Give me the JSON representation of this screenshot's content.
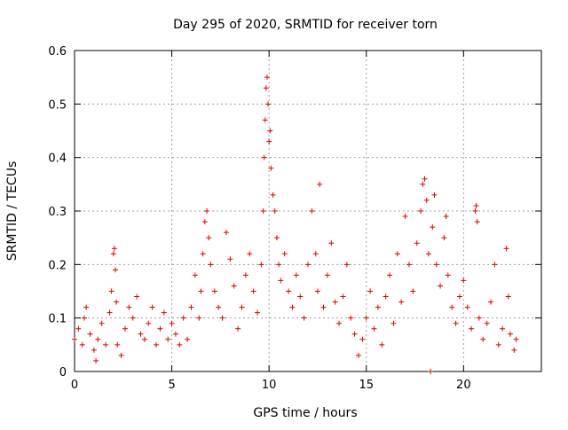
{
  "chart_data": {
    "type": "scatter",
    "title": "Day 295 of 2020, SRMTID for receiver torn",
    "xlabel": "GPS time / hours",
    "ylabel": "SRMTID / TECUs",
    "xlim": [
      0,
      24
    ],
    "ylim": [
      0,
      0.6
    ],
    "xticks": [
      0,
      5,
      10,
      15,
      20
    ],
    "yticks": [
      0,
      0.1,
      0.2,
      0.3,
      0.4,
      0.5,
      0.6
    ],
    "xtick_labels": [
      "0",
      "5",
      "10",
      "15",
      "20"
    ],
    "ytick_labels": [
      "0",
      "0.1",
      "0.2",
      "0.3",
      "0.4",
      "0.5",
      "0.6"
    ],
    "grid": true,
    "marker": "plus",
    "series": [
      {
        "name": "SRMTID",
        "color": "#e00000",
        "points": [
          [
            0.0,
            0.06
          ],
          [
            0.2,
            0.08
          ],
          [
            0.4,
            0.05
          ],
          [
            0.5,
            0.1
          ],
          [
            0.6,
            0.12
          ],
          [
            0.8,
            0.07
          ],
          [
            1.0,
            0.04
          ],
          [
            1.1,
            0.02
          ],
          [
            1.2,
            0.06
          ],
          [
            1.4,
            0.09
          ],
          [
            1.6,
            0.05
          ],
          [
            1.8,
            0.11
          ],
          [
            1.9,
            0.15
          ],
          [
            2.0,
            0.22
          ],
          [
            2.05,
            0.23
          ],
          [
            2.1,
            0.19
          ],
          [
            2.15,
            0.13
          ],
          [
            2.2,
            0.05
          ],
          [
            2.4,
            0.03
          ],
          [
            2.6,
            0.08
          ],
          [
            2.8,
            0.12
          ],
          [
            3.0,
            0.1
          ],
          [
            3.2,
            0.14
          ],
          [
            3.4,
            0.07
          ],
          [
            3.6,
            0.06
          ],
          [
            3.8,
            0.09
          ],
          [
            4.0,
            0.12
          ],
          [
            4.2,
            0.05
          ],
          [
            4.4,
            0.08
          ],
          [
            4.6,
            0.11
          ],
          [
            4.8,
            0.06
          ],
          [
            5.0,
            0.09
          ],
          [
            5.2,
            0.07
          ],
          [
            5.4,
            0.05
          ],
          [
            5.6,
            0.1
          ],
          [
            5.8,
            0.06
          ],
          [
            6.0,
            0.12
          ],
          [
            6.2,
            0.18
          ],
          [
            6.4,
            0.1
          ],
          [
            6.5,
            0.15
          ],
          [
            6.6,
            0.22
          ],
          [
            6.7,
            0.28
          ],
          [
            6.8,
            0.3
          ],
          [
            6.9,
            0.25
          ],
          [
            7.0,
            0.2
          ],
          [
            7.2,
            0.15
          ],
          [
            7.4,
            0.12
          ],
          [
            7.6,
            0.1
          ],
          [
            7.8,
            0.26
          ],
          [
            8.0,
            0.21
          ],
          [
            8.2,
            0.16
          ],
          [
            8.4,
            0.08
          ],
          [
            8.6,
            0.12
          ],
          [
            8.8,
            0.18
          ],
          [
            9.0,
            0.22
          ],
          [
            9.2,
            0.15
          ],
          [
            9.4,
            0.11
          ],
          [
            9.6,
            0.2
          ],
          [
            9.7,
            0.3
          ],
          [
            9.75,
            0.4
          ],
          [
            9.8,
            0.47
          ],
          [
            9.85,
            0.53
          ],
          [
            9.9,
            0.55
          ],
          [
            9.95,
            0.5
          ],
          [
            10.0,
            0.43
          ],
          [
            10.05,
            0.45
          ],
          [
            10.1,
            0.38
          ],
          [
            10.2,
            0.33
          ],
          [
            10.3,
            0.3
          ],
          [
            10.4,
            0.25
          ],
          [
            10.5,
            0.2
          ],
          [
            10.6,
            0.17
          ],
          [
            10.8,
            0.22
          ],
          [
            11.0,
            0.15
          ],
          [
            11.2,
            0.12
          ],
          [
            11.4,
            0.18
          ],
          [
            11.6,
            0.14
          ],
          [
            11.8,
            0.1
          ],
          [
            12.0,
            0.2
          ],
          [
            12.2,
            0.3
          ],
          [
            12.4,
            0.22
          ],
          [
            12.5,
            0.15
          ],
          [
            12.6,
            0.35
          ],
          [
            12.8,
            0.12
          ],
          [
            13.0,
            0.18
          ],
          [
            13.2,
            0.24
          ],
          [
            13.4,
            0.13
          ],
          [
            13.6,
            0.09
          ],
          [
            13.8,
            0.14
          ],
          [
            14.0,
            0.2
          ],
          [
            14.2,
            0.1
          ],
          [
            14.4,
            0.07
          ],
          [
            14.6,
            0.03
          ],
          [
            14.8,
            0.06
          ],
          [
            15.0,
            0.1
          ],
          [
            15.2,
            0.15
          ],
          [
            15.4,
            0.08
          ],
          [
            15.6,
            0.12
          ],
          [
            15.8,
            0.05
          ],
          [
            16.0,
            0.14
          ],
          [
            16.2,
            0.18
          ],
          [
            16.4,
            0.09
          ],
          [
            16.6,
            0.22
          ],
          [
            16.8,
            0.13
          ],
          [
            17.0,
            0.29
          ],
          [
            17.2,
            0.2
          ],
          [
            17.4,
            0.15
          ],
          [
            17.6,
            0.24
          ],
          [
            17.8,
            0.3
          ],
          [
            17.9,
            0.35
          ],
          [
            18.0,
            0.36
          ],
          [
            18.1,
            0.32
          ],
          [
            18.2,
            0.22
          ],
          [
            18.3,
            0.0
          ],
          [
            18.4,
            0.27
          ],
          [
            18.5,
            0.33
          ],
          [
            18.6,
            0.2
          ],
          [
            18.8,
            0.16
          ],
          [
            19.0,
            0.25
          ],
          [
            19.1,
            0.29
          ],
          [
            19.2,
            0.18
          ],
          [
            19.4,
            0.12
          ],
          [
            19.6,
            0.09
          ],
          [
            19.8,
            0.14
          ],
          [
            20.0,
            0.17
          ],
          [
            20.2,
            0.12
          ],
          [
            20.4,
            0.08
          ],
          [
            20.6,
            0.3
          ],
          [
            20.65,
            0.31
          ],
          [
            20.7,
            0.28
          ],
          [
            20.8,
            0.1
          ],
          [
            21.0,
            0.06
          ],
          [
            21.2,
            0.09
          ],
          [
            21.4,
            0.13
          ],
          [
            21.6,
            0.2
          ],
          [
            21.8,
            0.05
          ],
          [
            22.0,
            0.08
          ],
          [
            22.2,
            0.23
          ],
          [
            22.3,
            0.14
          ],
          [
            22.4,
            0.07
          ],
          [
            22.6,
            0.04
          ],
          [
            22.7,
            0.06
          ]
        ]
      }
    ]
  }
}
